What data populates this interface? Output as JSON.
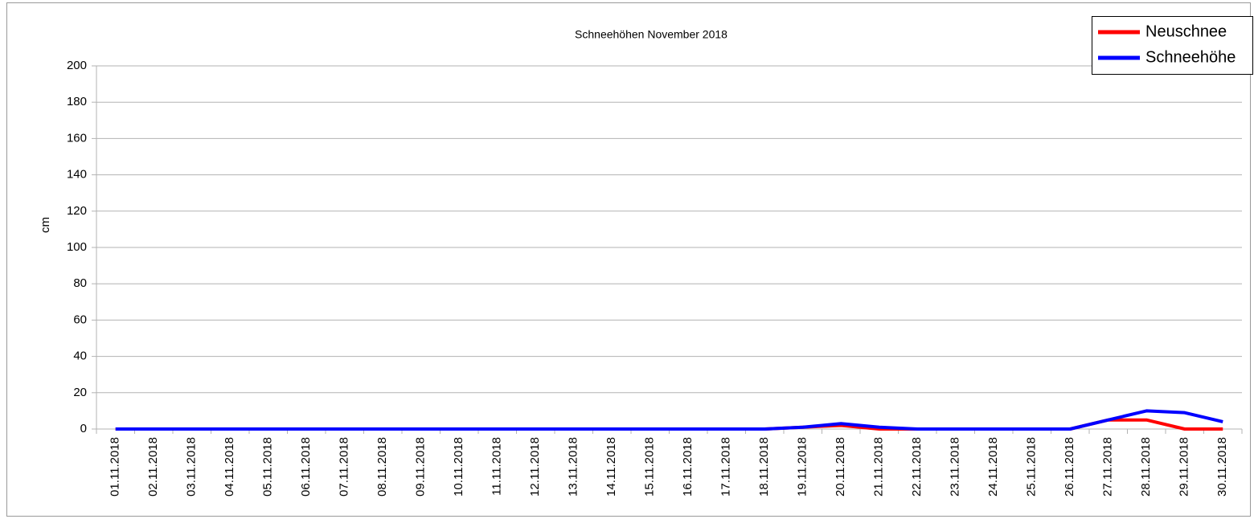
{
  "chart_data": {
    "type": "line",
    "title": "Schneehöhen November 2018",
    "y_label": "cm",
    "categories": [
      "01.11.2018",
      "02.11.2018",
      "03.11.2018",
      "04.11.2018",
      "05.11.2018",
      "06.11.2018",
      "07.11.2018",
      "08.11.2018",
      "09.11.2018",
      "10.11.2018",
      "11.11.2018",
      "12.11.2018",
      "13.11.2018",
      "14.11.2018",
      "15.11.2018",
      "16.11.2018",
      "17.11.2018",
      "18.11.2018",
      "19.11.2018",
      "20.11.2018",
      "21.11.2018",
      "22.11.2018",
      "23.11.2018",
      "24.11.2018",
      "25.11.2018",
      "26.11.2018",
      "27.11.2018",
      "28.11.2018",
      "29.11.2018",
      "30.11.2018"
    ],
    "series": [
      {
        "name": "Neuschnee",
        "color": "#ff0000",
        "values": [
          0,
          0,
          0,
          0,
          0,
          0,
          0,
          0,
          0,
          0,
          0,
          0,
          0,
          0,
          0,
          0,
          0,
          0,
          1,
          2,
          0,
          0,
          0,
          0,
          0,
          0,
          5,
          5,
          0,
          0
        ]
      },
      {
        "name": "Schneehöhe",
        "color": "#0000ff",
        "values": [
          0,
          0,
          0,
          0,
          0,
          0,
          0,
          0,
          0,
          0,
          0,
          0,
          0,
          0,
          0,
          0,
          0,
          0,
          1,
          3,
          1,
          0,
          0,
          0,
          0,
          0,
          5,
          10,
          9,
          4
        ]
      }
    ],
    "ylim": [
      0,
      200
    ],
    "yticks": [
      0,
      20,
      40,
      60,
      80,
      100,
      120,
      140,
      160,
      180,
      200
    ],
    "grid": true,
    "legend": "top-right"
  }
}
